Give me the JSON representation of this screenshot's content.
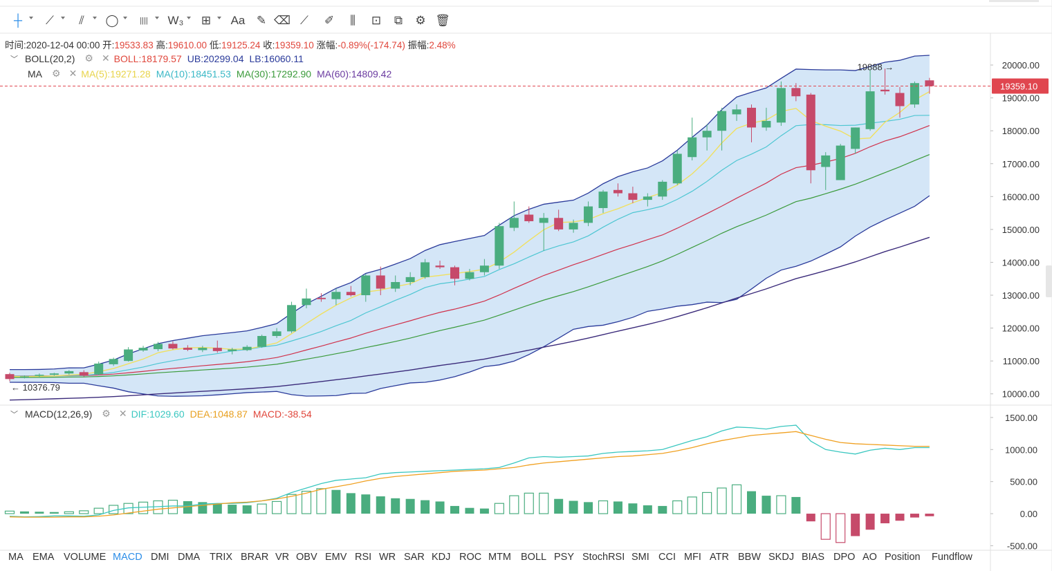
{
  "toolbar": {
    "tools": [
      {
        "icon": "crosshair-icon",
        "glyph": "┼",
        "dropdown": true
      },
      {
        "icon": "trend-line-icon",
        "glyph": "⟋",
        "dropdown": true
      },
      {
        "icon": "parallel-line-icon",
        "glyph": "⫽",
        "dropdown": true
      },
      {
        "icon": "ellipse-icon",
        "glyph": "◯",
        "dropdown": true
      },
      {
        "icon": "fib-bars-icon",
        "glyph": "||||",
        "dropdown": true
      },
      {
        "icon": "wave-icon",
        "glyph": "W₃",
        "dropdown": true
      },
      {
        "icon": "measure-icon",
        "glyph": "⊞",
        "dropdown": true
      },
      {
        "icon": "text-icon",
        "glyph": "Aa",
        "dropdown": false
      },
      {
        "icon": "brush-icon",
        "glyph": "✎",
        "dropdown": false
      },
      {
        "icon": "eraser-icon",
        "glyph": "⌫",
        "dropdown": false
      },
      {
        "icon": "ruler-icon",
        "glyph": "⟋",
        "dropdown": false
      },
      {
        "icon": "pencil-icon",
        "glyph": "✐",
        "dropdown": false
      },
      {
        "icon": "candles-icon",
        "glyph": "⫼",
        "dropdown": false
      },
      {
        "icon": "lock-icon",
        "glyph": "⊡",
        "dropdown": false
      },
      {
        "icon": "copy-icon",
        "glyph": "⧉",
        "dropdown": false
      },
      {
        "icon": "settings-doc-icon",
        "glyph": "⚙",
        "dropdown": false
      },
      {
        "icon": "trash-icon",
        "glyph": "🗑",
        "dropdown": false
      }
    ]
  },
  "info": {
    "time_label": "时间:",
    "time": "2020-12-04 00:00",
    "open_label": "开:",
    "open": "19533.83",
    "high_label": "高:",
    "high": "19610.00",
    "low_label": "低:",
    "low": "19125.24",
    "close_label": "收:",
    "close": "19359.10",
    "change_label": "涨幅:",
    "change": "-0.89%(-174.74)",
    "amp_label": "振幅:",
    "amp": "2.48%"
  },
  "boll": {
    "name": "BOLL(20,2)",
    "boll": "BOLL:18179.57",
    "ub": "UB:20299.04",
    "lb": "LB:16060.11"
  },
  "ma": {
    "name": "MA",
    "ma5": "MA(5):19271.28",
    "ma10": "MA(10):18451.53",
    "ma30": "MA(30):17292.90",
    "ma60": "MA(60):14809.42"
  },
  "macd": {
    "name": "MACD(12,26,9)",
    "dif": "DIF:1029.60",
    "dea": "DEA:1048.87",
    "macd": "MACD:-38.54"
  },
  "colors": {
    "up": "#4aad7f",
    "down": "#c64a6a",
    "ma5": "#f0e060",
    "ma10": "#4dc6d2",
    "ma30": "#d0304a",
    "ma60": "#3a9a3a",
    "boll_band": "#2a3a9a",
    "boll_fill": "#cfe3f6",
    "dif": "#3ac7c0",
    "dea": "#f0a020",
    "dark_line": "#3a2a7a",
    "accent_blue": "#2d8ee8"
  },
  "chart_data": {
    "type": "candlestick",
    "price_axis": {
      "ticks": [
        "20000.00",
        "19000.00",
        "18000.00",
        "17000.00",
        "16000.00",
        "15000.00",
        "14000.00",
        "13000.00",
        "12000.00",
        "11000.00",
        "10000.00"
      ],
      "range": [
        9700,
        20800
      ]
    },
    "last_price_label": "19359.10",
    "high_marker": "19888",
    "low_marker": "10376.79",
    "candles": [
      [
        10600,
        10640,
        10380,
        10450
      ],
      [
        10500,
        10560,
        10470,
        10530
      ],
      [
        10560,
        10620,
        10520,
        10580
      ],
      [
        10580,
        10640,
        10550,
        10620
      ],
      [
        10620,
        10720,
        10580,
        10690
      ],
      [
        10660,
        10720,
        10520,
        10560
      ],
      [
        10600,
        10980,
        10560,
        10920
      ],
      [
        10900,
        11100,
        10850,
        11060
      ],
      [
        11000,
        11420,
        10980,
        11350
      ],
      [
        11320,
        11460,
        11280,
        11400
      ],
      [
        11360,
        11580,
        11300,
        11520
      ],
      [
        11520,
        11600,
        11350,
        11380
      ],
      [
        11400,
        11480,
        11300,
        11340
      ],
      [
        11330,
        11460,
        11270,
        11400
      ],
      [
        11400,
        11620,
        11250,
        11300
      ],
      [
        11300,
        11400,
        11200,
        11350
      ],
      [
        11330,
        11480,
        11300,
        11430
      ],
      [
        11430,
        11800,
        11400,
        11760
      ],
      [
        11760,
        12000,
        11700,
        11900
      ],
      [
        11900,
        12800,
        11850,
        12700
      ],
      [
        12700,
        13200,
        12600,
        12900
      ],
      [
        12920,
        13060,
        12800,
        12880
      ],
      [
        12880,
        13200,
        12700,
        13100
      ],
      [
        13100,
        13280,
        12960,
        13000
      ],
      [
        13000,
        13650,
        12800,
        13600
      ],
      [
        13600,
        13870,
        13000,
        13200
      ],
      [
        13200,
        13600,
        13100,
        13400
      ],
      [
        13400,
        13700,
        13300,
        13550
      ],
      [
        13550,
        14100,
        13500,
        14000
      ],
      [
        13900,
        14050,
        13800,
        13850
      ],
      [
        13850,
        13900,
        13300,
        13500
      ],
      [
        13500,
        13800,
        13450,
        13700
      ],
      [
        13700,
        14100,
        13600,
        13900
      ],
      [
        13900,
        15200,
        13800,
        15100
      ],
      [
        15050,
        15850,
        14950,
        15350
      ],
      [
        15450,
        15700,
        15200,
        15250
      ],
      [
        15200,
        15500,
        14350,
        15350
      ],
      [
        15350,
        15600,
        14950,
        15000
      ],
      [
        15000,
        15300,
        14900,
        15200
      ],
      [
        15200,
        15850,
        15100,
        15700
      ],
      [
        15650,
        16200,
        15500,
        16150
      ],
      [
        16200,
        16400,
        16000,
        16100
      ],
      [
        16100,
        16300,
        15800,
        15900
      ],
      [
        15900,
        16100,
        15700,
        16000
      ],
      [
        16000,
        16500,
        15900,
        16450
      ],
      [
        16400,
        17400,
        16350,
        17300
      ],
      [
        17200,
        18400,
        17100,
        17800
      ],
      [
        17800,
        18200,
        17400,
        18000
      ],
      [
        18000,
        18700,
        17400,
        18600
      ],
      [
        18500,
        18800,
        18300,
        18650
      ],
      [
        18700,
        18800,
        17650,
        18100
      ],
      [
        18100,
        18700,
        18000,
        18300
      ],
      [
        18250,
        19500,
        18150,
        19300
      ],
      [
        19300,
        19450,
        18900,
        19050
      ],
      [
        19100,
        19150,
        16400,
        16800
      ],
      [
        16900,
        17350,
        16200,
        17250
      ],
      [
        16500,
        17600,
        16500,
        17550
      ],
      [
        17450,
        18100,
        17300,
        18100
      ],
      [
        18050,
        19850,
        18000,
        19200
      ],
      [
        19250,
        19890,
        19100,
        19200
      ],
      [
        19150,
        19330,
        18400,
        18750
      ],
      [
        18800,
        19500,
        18700,
        19450
      ],
      [
        19533.83,
        19610,
        19125.24,
        19359.1
      ]
    ],
    "macd_axis": {
      "ticks": [
        "1500.00",
        "1000.00",
        "500.00",
        "0.00",
        "-500.00"
      ],
      "range": [
        -560,
        1650
      ]
    },
    "macd_hist": [
      40,
      35,
      30,
      25,
      30,
      45,
      85,
      130,
      160,
      180,
      200,
      210,
      195,
      180,
      160,
      140,
      130,
      150,
      190,
      300,
      350,
      390,
      370,
      320,
      300,
      270,
      240,
      230,
      210,
      190,
      120,
      90,
      80,
      160,
      280,
      320,
      320,
      230,
      200,
      180,
      200,
      190,
      160,
      130,
      120,
      200,
      260,
      330,
      400,
      450,
      350,
      280,
      280,
      260,
      -120,
      -400,
      -450,
      -350,
      -250,
      -150,
      -110,
      -60,
      -40
    ],
    "dif": [
      -40,
      -50,
      -45,
      -35,
      -35,
      -40,
      -20,
      50,
      90,
      100,
      110,
      120,
      120,
      150,
      160,
      160,
      170,
      200,
      240,
      330,
      400,
      470,
      520,
      540,
      560,
      620,
      640,
      650,
      660,
      670,
      680,
      690,
      700,
      720,
      790,
      870,
      890,
      880,
      890,
      900,
      940,
      960,
      970,
      980,
      1000,
      1070,
      1140,
      1200,
      1290,
      1350,
      1340,
      1320,
      1360,
      1380,
      1130,
      1000,
      960,
      930,
      990,
      1020,
      1000,
      1030,
      1030
    ],
    "dea": [
      -50,
      -55,
      -55,
      -55,
      -50,
      -50,
      -40,
      -20,
      10,
      40,
      70,
      90,
      110,
      130,
      150,
      170,
      180,
      200,
      230,
      270,
      320,
      380,
      420,
      460,
      510,
      550,
      580,
      600,
      620,
      640,
      660,
      670,
      680,
      700,
      720,
      760,
      790,
      810,
      830,
      850,
      870,
      890,
      900,
      920,
      940,
      980,
      1030,
      1090,
      1140,
      1180,
      1220,
      1240,
      1260,
      1280,
      1220,
      1160,
      1110,
      1090,
      1080,
      1070,
      1060,
      1050,
      1050
    ],
    "tabs": [
      "MA",
      "EMA",
      "VOLUME",
      "MACD",
      "DMI",
      "DMA",
      "TRIX",
      "BRAR",
      "VR",
      "OBV",
      "EMV",
      "RSI",
      "WR",
      "SAR",
      "KDJ",
      "ROC",
      "MTM",
      "BOLL",
      "PSY",
      "StochRSI",
      "SMI",
      "CCI",
      "MFI",
      "ATR",
      "BBW",
      "SKDJ",
      "BIAS",
      "DPO",
      "AO",
      "Position",
      "Fundflow"
    ],
    "active_tab": "MACD"
  }
}
